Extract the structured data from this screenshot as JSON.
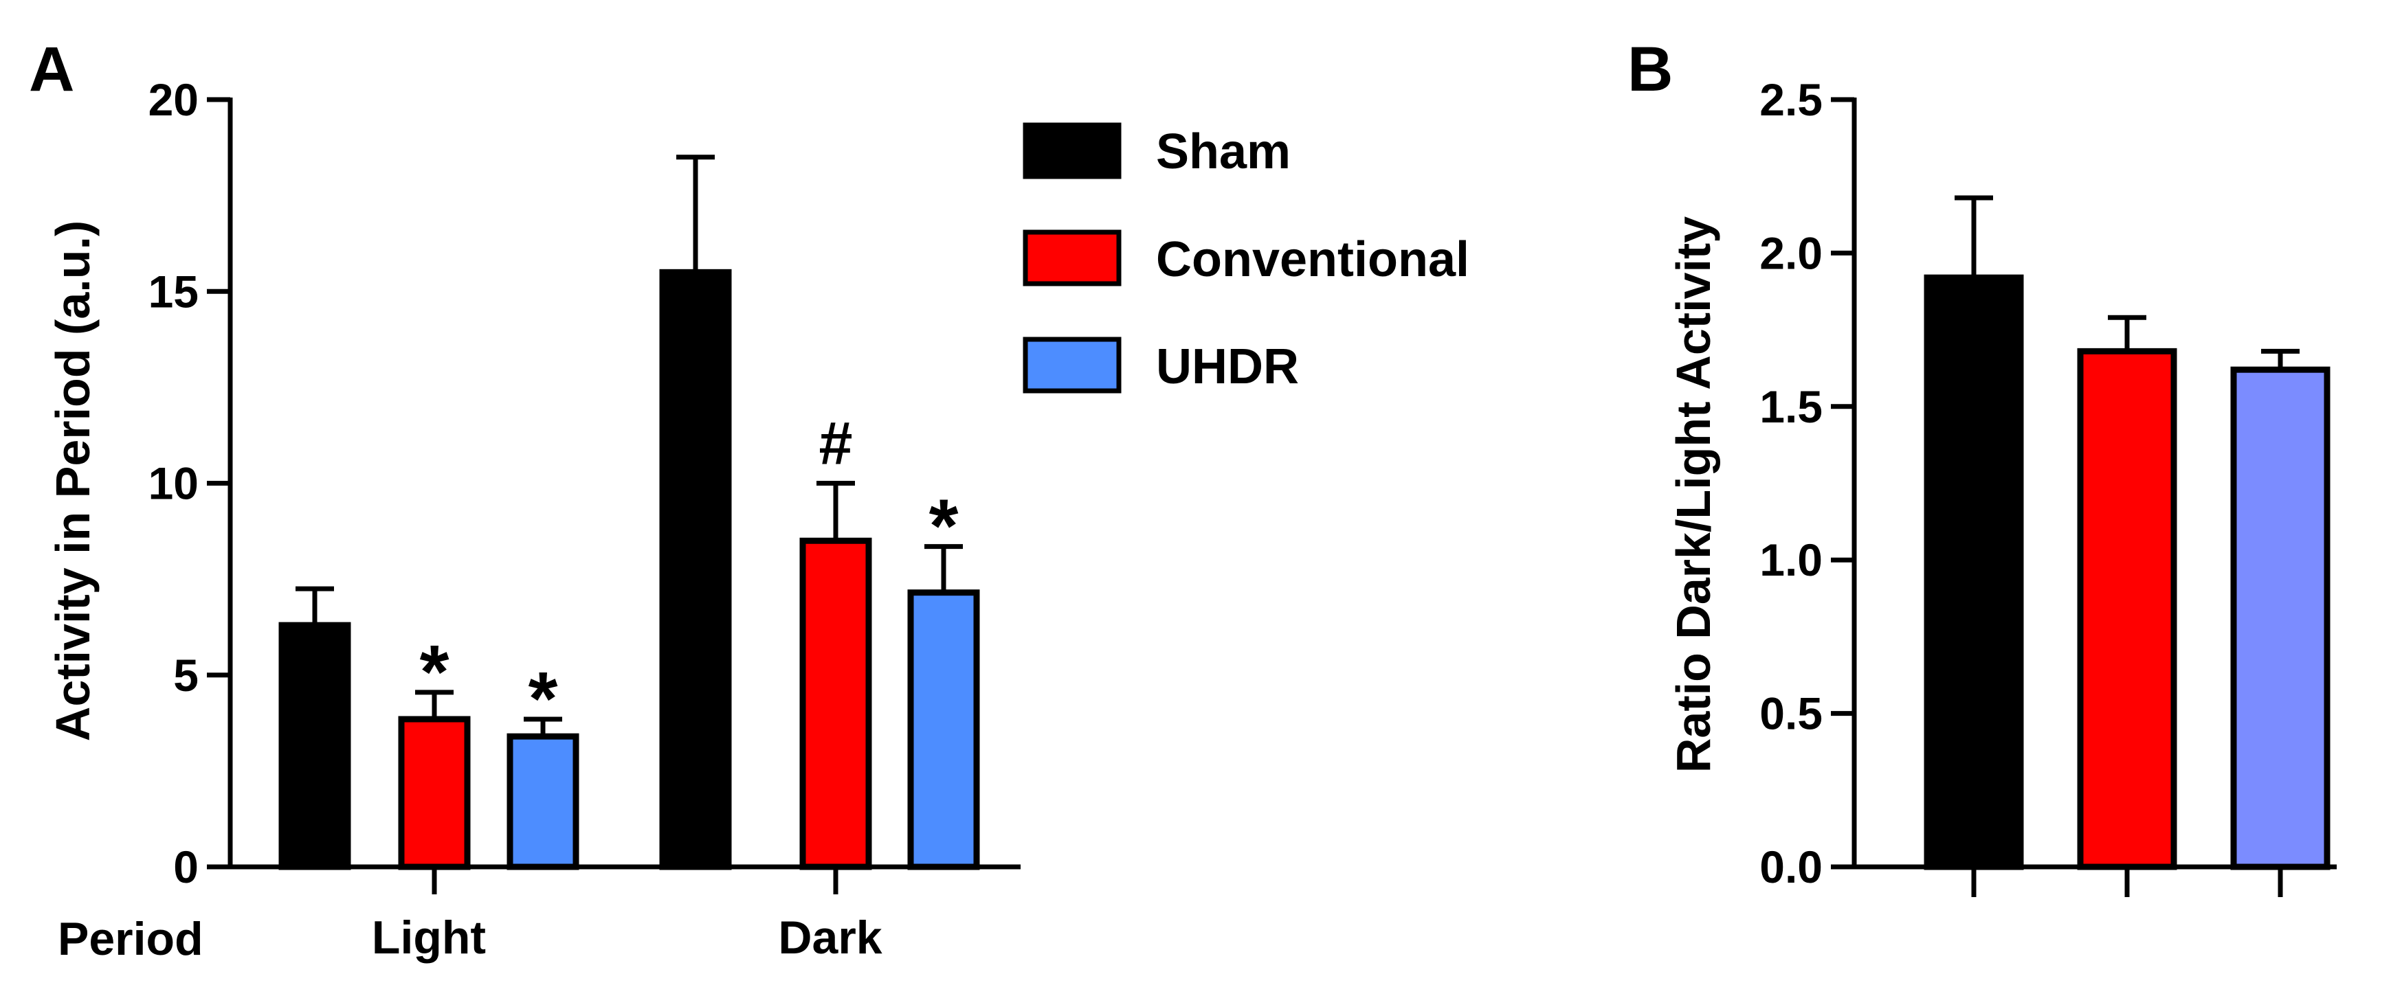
{
  "colors": {
    "sham": "#000000",
    "conventional": "#ff0000",
    "uhdr_a": "#4d8dff",
    "uhdr_b": "#7b8cff"
  },
  "chart_data": [
    {
      "panel": "A",
      "type": "bar",
      "ylabel": "Activity in Period (a.u.)",
      "xaxis_row_label": "Period",
      "categories": [
        "Light",
        "Dark"
      ],
      "ylim": [
        0,
        20
      ],
      "yticks": [
        "0",
        "5",
        "10",
        "15",
        "20"
      ],
      "grid": false,
      "legend_position": "top-right",
      "series": [
        {
          "name": "Sham",
          "color_key": "sham",
          "values": [
            6.3,
            15.5
          ],
          "errors": [
            0.95,
            3.0
          ],
          "markers": [
            "",
            ""
          ]
        },
        {
          "name": "Conventional",
          "color_key": "conventional",
          "values": [
            3.85,
            8.5
          ],
          "errors": [
            0.7,
            1.5
          ],
          "markers": [
            "*",
            "#"
          ]
        },
        {
          "name": "UHDR",
          "color_key": "uhdr_a",
          "values": [
            3.4,
            7.15
          ],
          "errors": [
            0.45,
            1.2
          ],
          "markers": [
            "*",
            "*"
          ]
        }
      ]
    },
    {
      "panel": "B",
      "type": "bar",
      "ylabel": "Ratio Dark/Light Activity",
      "ylim": [
        0,
        2.5
      ],
      "yticks": [
        "0.0",
        "0.5",
        "1.0",
        "1.5",
        "2.0",
        "2.5"
      ],
      "grid": false,
      "series": [
        {
          "name": "Sham",
          "color_key": "sham",
          "values": [
            1.92
          ],
          "errors": [
            0.26
          ]
        },
        {
          "name": "Conventional",
          "color_key": "conventional",
          "values": [
            1.68
          ],
          "errors": [
            0.11
          ]
        },
        {
          "name": "UHDR",
          "color_key": "uhdr_b",
          "values": [
            1.62
          ],
          "errors": [
            0.06
          ]
        }
      ]
    }
  ]
}
